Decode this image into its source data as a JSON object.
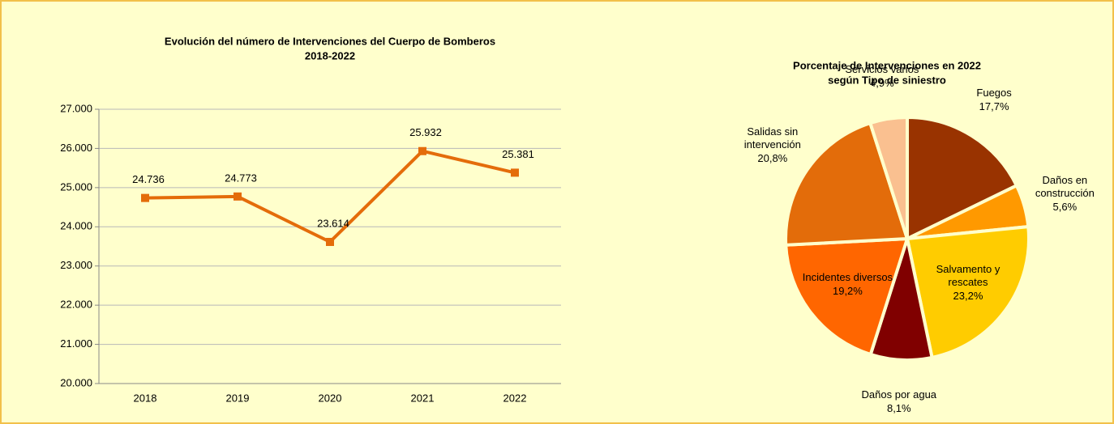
{
  "chart_data": [
    {
      "type": "line",
      "title": [
        "Evolución del número de Intervenciones del Cuerpo de Bomberos",
        "2018-2022"
      ],
      "categories": [
        "2018",
        "2019",
        "2020",
        "2021",
        "2022"
      ],
      "values": [
        24736,
        24773,
        23614,
        25932,
        25381
      ],
      "value_labels": [
        "24.736",
        "24.773",
        "23.614",
        "25.932",
        "25.381"
      ],
      "color": "#e46c0a",
      "ylim": [
        20000,
        27000
      ],
      "yticks": [
        {
          "value": 20000,
          "label": "20.000"
        },
        {
          "value": 21000,
          "label": "21.000"
        },
        {
          "value": 22000,
          "label": "22.000"
        },
        {
          "value": 23000,
          "label": "23.000"
        },
        {
          "value": 24000,
          "label": "24.000"
        },
        {
          "value": 25000,
          "label": "25.000"
        },
        {
          "value": 26000,
          "label": "26.000"
        },
        {
          "value": 27000,
          "label": "27.000"
        }
      ],
      "grid": true
    },
    {
      "type": "pie",
      "title": [
        "Porcentaje de Intervenciones en 2022",
        "según Tipo de siniestro"
      ],
      "categories": [
        "Fuegos",
        "Daños en construcción",
        "Salvamento y rescates",
        "Daños por agua",
        "Incidentes diversos",
        "Salidas sin intervención",
        "Servicios varios"
      ],
      "values": [
        17.7,
        5.6,
        23.2,
        8.1,
        19.2,
        20.8,
        4.9
      ],
      "value_labels": [
        "17,7%",
        "5,6%",
        "23,2%",
        "8,1%",
        "19,2%",
        "20,8%",
        "4,9%"
      ],
      "colors": [
        "#993300",
        "#ff9900",
        "#ffcc00",
        "#800000",
        "#ff6600",
        "#e36c0a",
        "#fac090"
      ]
    }
  ]
}
